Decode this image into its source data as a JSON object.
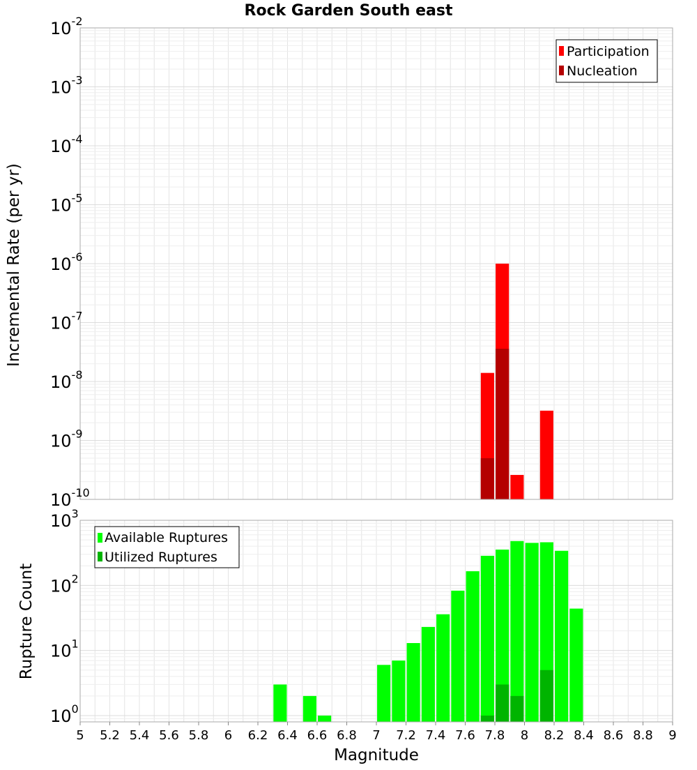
{
  "chart_data": [
    {
      "type": "bar",
      "title": "Rock Garden South east",
      "ylabel": "Incremental Rate (per yr)",
      "yscale": "log",
      "ylim": [
        1e-10,
        0.01
      ],
      "ytick_labels": [
        {
          "base": "10",
          "exp": "-10"
        },
        {
          "base": "10",
          "exp": "-9"
        },
        {
          "base": "10",
          "exp": "-8"
        },
        {
          "base": "10",
          "exp": "-7"
        },
        {
          "base": "10",
          "exp": "-6"
        },
        {
          "base": "10",
          "exp": "-5"
        },
        {
          "base": "10",
          "exp": "-4"
        },
        {
          "base": "10",
          "exp": "-3"
        },
        {
          "base": "10",
          "exp": "-2"
        }
      ],
      "xlim": [
        5,
        9
      ],
      "grid": true,
      "legend": "top-right",
      "series": [
        {
          "name": "Participation",
          "color": "#ff0000",
          "points": [
            {
              "x": 7.75,
              "y": 1.4e-08
            },
            {
              "x": 7.85,
              "y": 1e-06
            },
            {
              "x": 7.95,
              "y": 2.6e-10
            },
            {
              "x": 8.15,
              "y": 3.2e-09
            }
          ]
        },
        {
          "name": "Nucleation",
          "color": "#b40000",
          "points": [
            {
              "x": 7.75,
              "y": 5e-10
            },
            {
              "x": 7.85,
              "y": 3.6e-08
            }
          ]
        }
      ]
    },
    {
      "type": "bar",
      "title": "",
      "xlabel": "Magnitude",
      "ylabel": "Rupture Count",
      "yscale": "log",
      "ylim": [
        0.8,
        1000
      ],
      "ytick_labels": [
        {
          "base": "10",
          "exp": "0"
        },
        {
          "base": "10",
          "exp": "1"
        },
        {
          "base": "10",
          "exp": "2"
        },
        {
          "base": "10",
          "exp": "3"
        }
      ],
      "xlim": [
        5,
        9
      ],
      "xtick_labels": [
        "5",
        "5.2",
        "5.4",
        "5.6",
        "5.8",
        "6",
        "6.2",
        "6.4",
        "6.6",
        "6.8",
        "7",
        "7.2",
        "7.4",
        "7.6",
        "7.8",
        "8",
        "8.2",
        "8.4",
        "8.6",
        "8.8",
        "9"
      ],
      "grid": true,
      "legend": "top-left",
      "series": [
        {
          "name": "Available Ruptures",
          "color": "#00ff00",
          "points": [
            {
              "x": 6.35,
              "y": 3
            },
            {
              "x": 6.55,
              "y": 2
            },
            {
              "x": 6.65,
              "y": 1
            },
            {
              "x": 7.05,
              "y": 6
            },
            {
              "x": 7.15,
              "y": 7
            },
            {
              "x": 7.25,
              "y": 13
            },
            {
              "x": 7.35,
              "y": 23
            },
            {
              "x": 7.45,
              "y": 36
            },
            {
              "x": 7.55,
              "y": 83
            },
            {
              "x": 7.65,
              "y": 165
            },
            {
              "x": 7.75,
              "y": 285
            },
            {
              "x": 7.85,
              "y": 355
            },
            {
              "x": 7.95,
              "y": 480
            },
            {
              "x": 8.05,
              "y": 450
            },
            {
              "x": 8.15,
              "y": 460
            },
            {
              "x": 8.25,
              "y": 340
            },
            {
              "x": 8.35,
              "y": 44
            }
          ]
        },
        {
          "name": "Utilized Ruptures",
          "color": "#00b400",
          "points": [
            {
              "x": 7.75,
              "y": 1
            },
            {
              "x": 7.85,
              "y": 3
            },
            {
              "x": 7.95,
              "y": 2
            },
            {
              "x": 8.15,
              "y": 5
            }
          ]
        }
      ]
    }
  ]
}
